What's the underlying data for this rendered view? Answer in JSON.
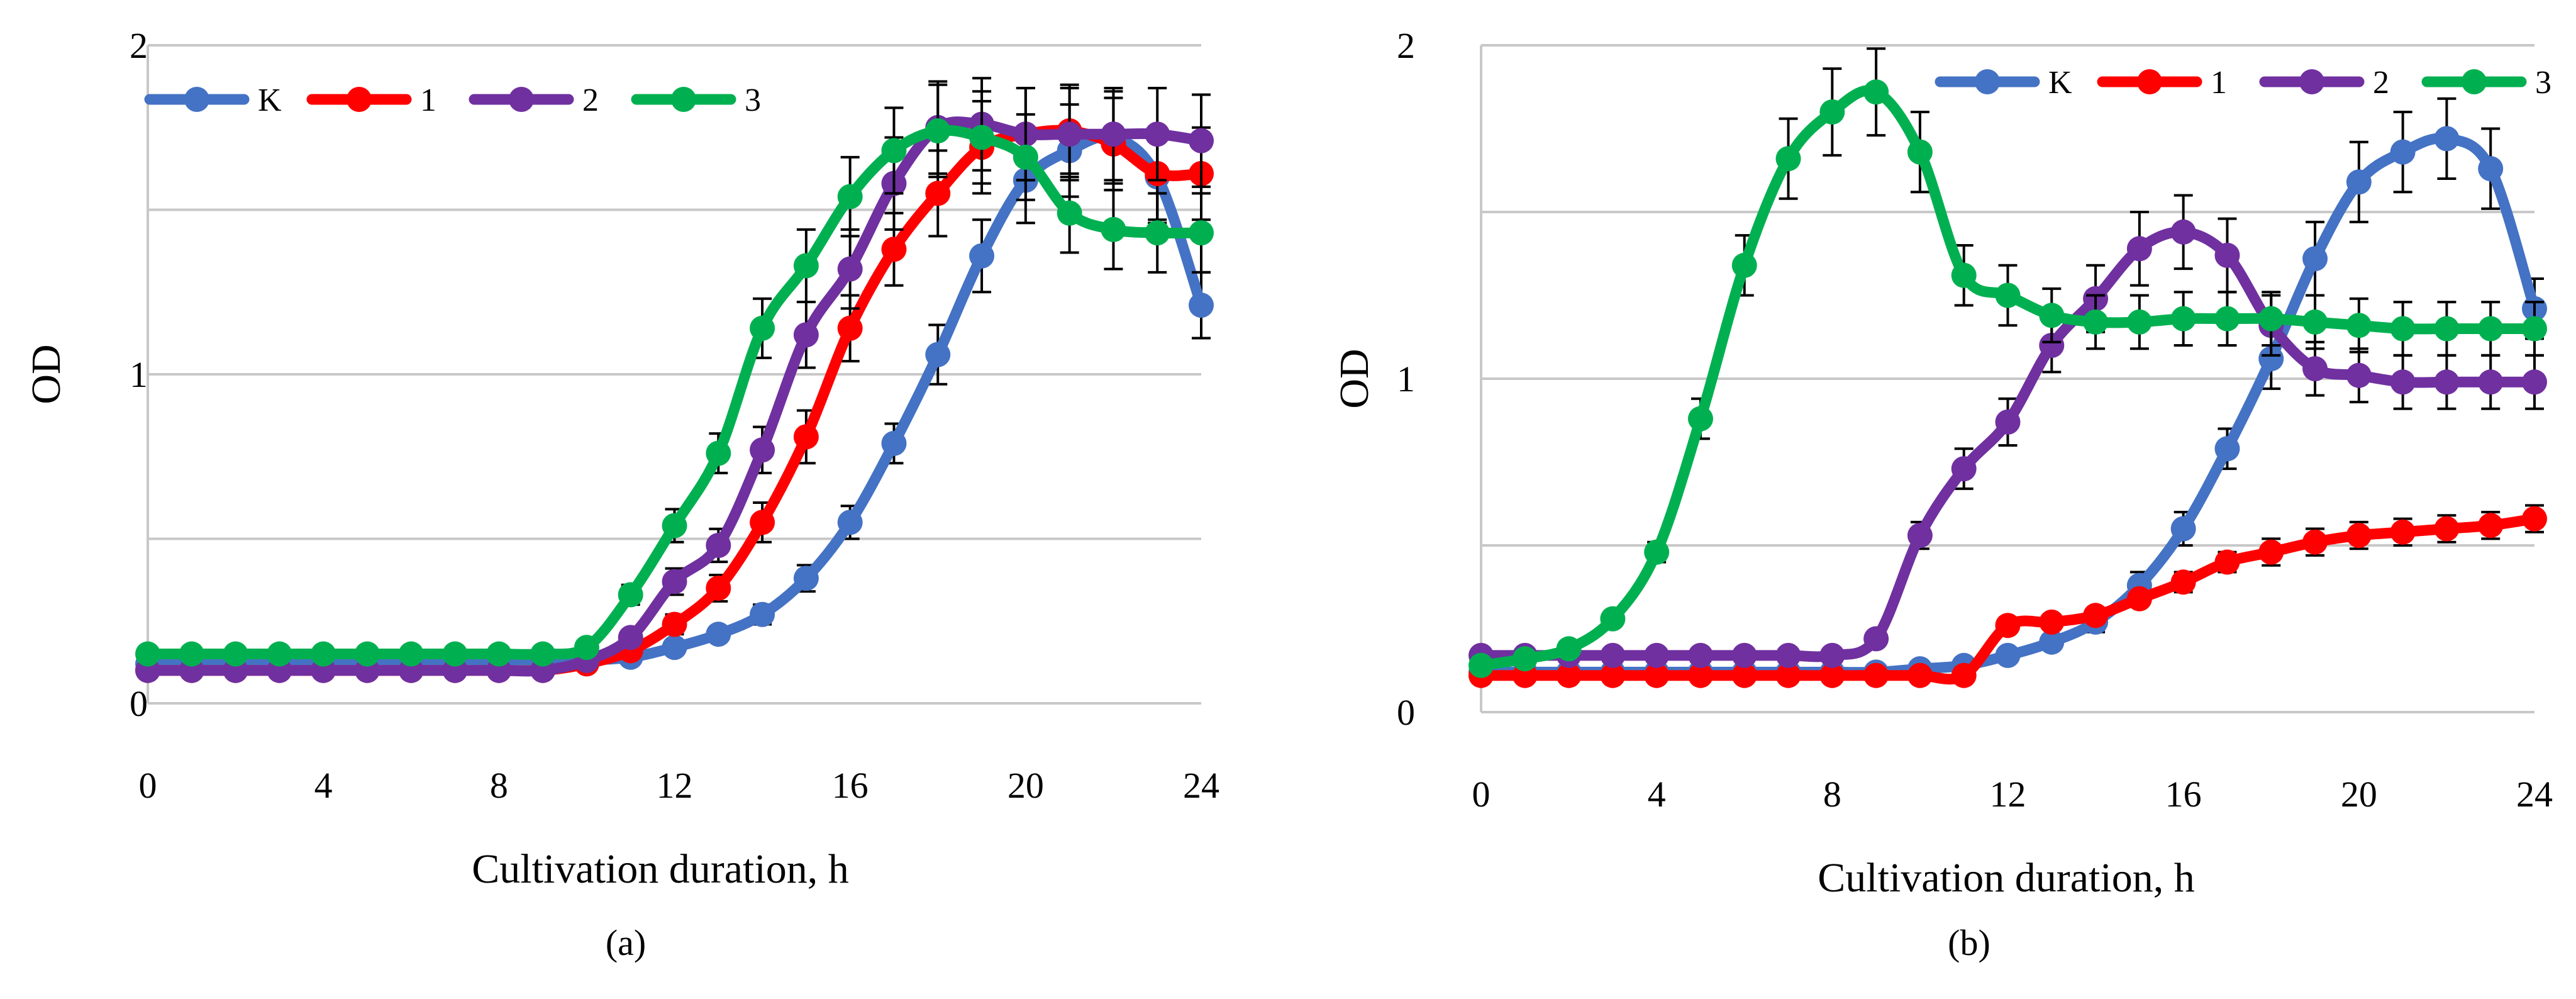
{
  "chart_data": [
    {
      "type": "line",
      "panel_label": "a",
      "xlabel": "Cultivation duration, h",
      "ylabel": "OD",
      "xlim": [
        0,
        24
      ],
      "ylim": [
        0,
        2
      ],
      "x_ticks": [
        "0",
        "4",
        "8",
        "12",
        "16",
        "20",
        "24"
      ],
      "y_ticks": [
        "0",
        "1",
        "2"
      ],
      "grid": "horizontal",
      "legend_position": "top-left",
      "error_bars": true,
      "x": [
        0,
        1,
        2,
        3,
        4,
        5,
        6,
        7,
        8,
        9,
        10,
        11,
        12,
        13,
        14,
        15,
        16,
        17,
        18,
        19,
        20,
        21,
        22,
        23,
        24
      ],
      "series": [
        {
          "name": "K",
          "color": "#4472C4",
          "values": [
            0.12,
            0.12,
            0.12,
            0.12,
            0.12,
            0.12,
            0.12,
            0.12,
            0.12,
            0.12,
            0.13,
            0.14,
            0.17,
            0.21,
            0.27,
            0.38,
            0.55,
            0.79,
            1.06,
            1.36,
            1.59,
            1.68,
            1.72,
            1.6,
            1.21
          ],
          "errors": [
            0.02,
            0.02,
            0.02,
            0.02,
            0.02,
            0.02,
            0.02,
            0.02,
            0.02,
            0.02,
            0.02,
            0.02,
            0.02,
            0.02,
            0.03,
            0.04,
            0.05,
            0.06,
            0.09,
            0.11,
            0.13,
            0.14,
            0.14,
            0.14,
            0.1
          ]
        },
        {
          "name": "1",
          "color": "#FF0000",
          "values": [
            0.1,
            0.1,
            0.1,
            0.1,
            0.1,
            0.1,
            0.1,
            0.1,
            0.1,
            0.1,
            0.12,
            0.16,
            0.24,
            0.35,
            0.55,
            0.81,
            1.14,
            1.38,
            1.55,
            1.69,
            1.73,
            1.74,
            1.7,
            1.61,
            1.61
          ],
          "errors": [
            0.01,
            0.01,
            0.01,
            0.01,
            0.01,
            0.01,
            0.01,
            0.01,
            0.01,
            0.01,
            0.01,
            0.02,
            0.03,
            0.04,
            0.06,
            0.08,
            0.1,
            0.11,
            0.13,
            0.14,
            0.14,
            0.14,
            0.14,
            0.14,
            0.14
          ]
        },
        {
          "name": "2",
          "color": "#7030A0",
          "values": [
            0.1,
            0.1,
            0.1,
            0.1,
            0.1,
            0.1,
            0.1,
            0.1,
            0.1,
            0.1,
            0.13,
            0.2,
            0.37,
            0.48,
            0.77,
            1.12,
            1.32,
            1.58,
            1.75,
            1.76,
            1.73,
            1.73,
            1.73,
            1.73,
            1.71
          ],
          "errors": [
            0.01,
            0.01,
            0.01,
            0.01,
            0.01,
            0.01,
            0.01,
            0.01,
            0.01,
            0.01,
            0.01,
            0.02,
            0.04,
            0.05,
            0.07,
            0.1,
            0.12,
            0.14,
            0.14,
            0.14,
            0.14,
            0.14,
            0.14,
            0.14,
            0.14
          ]
        },
        {
          "name": "3",
          "color": "#00B050",
          "values": [
            0.15,
            0.15,
            0.15,
            0.15,
            0.15,
            0.15,
            0.15,
            0.15,
            0.15,
            0.15,
            0.17,
            0.33,
            0.54,
            0.76,
            1.14,
            1.33,
            1.54,
            1.68,
            1.74,
            1.72,
            1.66,
            1.49,
            1.44,
            1.43,
            1.43
          ],
          "errors": [
            0.01,
            0.01,
            0.01,
            0.01,
            0.01,
            0.01,
            0.01,
            0.01,
            0.01,
            0.01,
            0.02,
            0.03,
            0.05,
            0.06,
            0.09,
            0.11,
            0.12,
            0.13,
            0.14,
            0.14,
            0.13,
            0.12,
            0.12,
            0.12,
            0.12
          ]
        }
      ]
    },
    {
      "type": "line",
      "panel_label": "b",
      "xlabel": "Cultivation duration, h",
      "ylabel": "OD",
      "xlim": [
        0,
        24
      ],
      "ylim": [
        0,
        2
      ],
      "x_ticks": [
        "0",
        "4",
        "8",
        "12",
        "16",
        "20",
        "24"
      ],
      "y_ticks": [
        "0",
        "1",
        "2"
      ],
      "grid": "horizontal",
      "legend_position": "top-right",
      "error_bars": true,
      "x": [
        0,
        1,
        2,
        3,
        4,
        5,
        6,
        7,
        8,
        9,
        10,
        11,
        12,
        13,
        14,
        15,
        16,
        17,
        18,
        19,
        20,
        21,
        22,
        23,
        24
      ],
      "series": [
        {
          "name": "K",
          "color": "#4472C4",
          "values": [
            0.12,
            0.12,
            0.12,
            0.12,
            0.12,
            0.12,
            0.12,
            0.12,
            0.12,
            0.12,
            0.13,
            0.14,
            0.17,
            0.21,
            0.27,
            0.38,
            0.55,
            0.79,
            1.06,
            1.36,
            1.59,
            1.68,
            1.72,
            1.63,
            1.21
          ],
          "errors": [
            0.02,
            0.02,
            0.02,
            0.02,
            0.02,
            0.02,
            0.02,
            0.02,
            0.02,
            0.02,
            0.02,
            0.02,
            0.02,
            0.02,
            0.03,
            0.04,
            0.05,
            0.06,
            0.09,
            0.11,
            0.12,
            0.12,
            0.12,
            0.12,
            0.09
          ]
        },
        {
          "name": "1",
          "color": "#FF0000",
          "values": [
            0.11,
            0.11,
            0.11,
            0.11,
            0.11,
            0.11,
            0.11,
            0.11,
            0.11,
            0.11,
            0.11,
            0.11,
            0.26,
            0.27,
            0.29,
            0.34,
            0.39,
            0.45,
            0.48,
            0.51,
            0.53,
            0.54,
            0.55,
            0.56,
            0.58
          ],
          "errors": [
            0.01,
            0.01,
            0.01,
            0.01,
            0.01,
            0.01,
            0.01,
            0.01,
            0.01,
            0.01,
            0.01,
            0.01,
            0.02,
            0.02,
            0.02,
            0.02,
            0.03,
            0.03,
            0.04,
            0.04,
            0.04,
            0.04,
            0.04,
            0.04,
            0.04
          ]
        },
        {
          "name": "2",
          "color": "#7030A0",
          "values": [
            0.17,
            0.17,
            0.17,
            0.17,
            0.17,
            0.17,
            0.17,
            0.17,
            0.17,
            0.22,
            0.53,
            0.73,
            0.87,
            1.1,
            1.24,
            1.39,
            1.44,
            1.37,
            1.16,
            1.03,
            1.01,
            0.99,
            0.99,
            0.99,
            0.99
          ],
          "errors": [
            0.01,
            0.01,
            0.01,
            0.01,
            0.01,
            0.01,
            0.01,
            0.01,
            0.01,
            0.02,
            0.04,
            0.06,
            0.07,
            0.08,
            0.1,
            0.11,
            0.11,
            0.11,
            0.09,
            0.08,
            0.08,
            0.08,
            0.08,
            0.08,
            0.08
          ]
        },
        {
          "name": "3",
          "color": "#00B050",
          "values": [
            0.14,
            0.16,
            0.19,
            0.28,
            0.48,
            0.88,
            1.34,
            1.66,
            1.8,
            1.86,
            1.68,
            1.31,
            1.25,
            1.19,
            1.17,
            1.17,
            1.18,
            1.18,
            1.18,
            1.17,
            1.16,
            1.15,
            1.15,
            1.15,
            1.15
          ],
          "errors": [
            0.01,
            0.01,
            0.01,
            0.02,
            0.03,
            0.06,
            0.09,
            0.12,
            0.13,
            0.13,
            0.12,
            0.09,
            0.09,
            0.08,
            0.08,
            0.08,
            0.08,
            0.08,
            0.08,
            0.08,
            0.08,
            0.08,
            0.08,
            0.08,
            0.08
          ]
        }
      ]
    }
  ],
  "captions": [
    "(a)",
    "(b)"
  ]
}
